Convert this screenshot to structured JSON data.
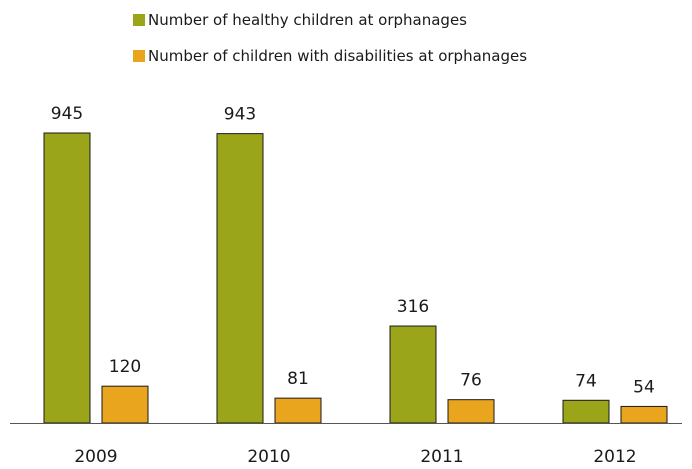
{
  "chart_data": {
    "type": "bar",
    "title": "",
    "xlabel": "",
    "ylabel": "",
    "categories": [
      "2009",
      "2010",
      "2011",
      "2012"
    ],
    "series": [
      {
        "name": "Number of healthy children at orphanages",
        "values": [
          945,
          943,
          316,
          74
        ],
        "color": "#9aa51a"
      },
      {
        "name": "Number of children with disabilities at orphanages",
        "values": [
          120,
          81,
          76,
          54
        ],
        "color": "#eaa51e"
      }
    ],
    "ylim": [
      0,
      945
    ],
    "grid": false,
    "legend_position": "top-center",
    "data_labels": true
  }
}
